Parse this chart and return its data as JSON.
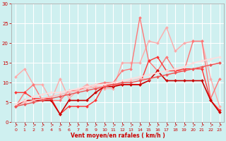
{
  "title": "",
  "xlabel": "Vent moyen/en rafales ( km/h )",
  "ylabel": "",
  "xlim": [
    -0.5,
    23.5
  ],
  "ylim": [
    0,
    30
  ],
  "xticks": [
    0,
    1,
    2,
    3,
    4,
    5,
    6,
    7,
    8,
    9,
    10,
    11,
    12,
    13,
    14,
    15,
    16,
    17,
    18,
    19,
    20,
    21,
    22,
    23
  ],
  "yticks": [
    0,
    5,
    10,
    15,
    20,
    25,
    30
  ],
  "background_color": "#cff0f0",
  "grid_color": "#ffffff",
  "series": [
    {
      "x": [
        0,
        1,
        2,
        3,
        4,
        5,
        6,
        7,
        8,
        9,
        10,
        11,
        12,
        13,
        14,
        15,
        16,
        17,
        18,
        19,
        20,
        21,
        22,
        23
      ],
      "y": [
        11.5,
        13.5,
        9.5,
        9.5,
        5.5,
        11.0,
        6.0,
        8.0,
        9.5,
        8.5,
        8.5,
        8.5,
        15.0,
        15.0,
        15.0,
        20.5,
        20.0,
        24.0,
        18.0,
        20.0,
        20.5,
        20.5,
        11.0,
        4.0
      ],
      "color": "#ffaaaa",
      "lw": 1.0,
      "marker": "D",
      "ms": 2.0
    },
    {
      "x": [
        0,
        1,
        2,
        3,
        4,
        5,
        6,
        7,
        8,
        9,
        10,
        11,
        12,
        13,
        14,
        15,
        16,
        17,
        18,
        19,
        20,
        21,
        22,
        23
      ],
      "y": [
        4.0,
        7.5,
        9.5,
        5.5,
        5.5,
        5.5,
        8.0,
        8.0,
        9.0,
        9.5,
        10.0,
        10.0,
        13.0,
        13.5,
        26.5,
        15.5,
        13.0,
        16.5,
        13.0,
        13.0,
        20.5,
        20.5,
        6.0,
        11.0
      ],
      "color": "#ff7777",
      "lw": 1.0,
      "marker": "D",
      "ms": 2.0
    },
    {
      "x": [
        0,
        1,
        2,
        3,
        4,
        5,
        6,
        7,
        8,
        9,
        10,
        11,
        12,
        13,
        14,
        15,
        16,
        17,
        18,
        19,
        20,
        21,
        22,
        23
      ],
      "y": [
        7.5,
        7.5,
        6.0,
        6.0,
        6.0,
        2.0,
        4.0,
        4.0,
        4.0,
        5.5,
        9.5,
        9.5,
        9.5,
        9.5,
        9.5,
        15.5,
        16.5,
        13.0,
        13.0,
        13.5,
        13.5,
        13.5,
        5.5,
        3.0
      ],
      "color": "#ff3333",
      "lw": 1.0,
      "marker": "D",
      "ms": 2.0
    },
    {
      "x": [
        0,
        1,
        2,
        3,
        4,
        5,
        6,
        7,
        8,
        9,
        10,
        11,
        12,
        13,
        14,
        15,
        16,
        17,
        18,
        19,
        20,
        21,
        22,
        23
      ],
      "y": [
        4.0,
        5.5,
        5.5,
        5.5,
        5.5,
        2.0,
        5.5,
        5.5,
        5.5,
        7.5,
        9.0,
        9.0,
        9.5,
        9.5,
        9.5,
        10.5,
        13.0,
        10.5,
        10.5,
        10.5,
        10.5,
        10.5,
        5.5,
        2.5
      ],
      "color": "#cc0000",
      "lw": 1.2,
      "marker": "D",
      "ms": 2.0
    },
    {
      "x": [
        0,
        1,
        2,
        3,
        4,
        5,
        6,
        7,
        8,
        9,
        10,
        11,
        12,
        13,
        14,
        15,
        16,
        17,
        18,
        19,
        20,
        21,
        22,
        23
      ],
      "y": [
        4.5,
        5.5,
        6.5,
        7.0,
        7.5,
        7.5,
        8.0,
        8.5,
        9.0,
        9.5,
        9.5,
        10.0,
        10.5,
        11.0,
        11.5,
        12.0,
        12.5,
        13.0,
        13.5,
        14.0,
        15.0,
        15.5,
        16.0,
        16.5
      ],
      "color": "#ffdddd",
      "lw": 1.2,
      "marker": "D",
      "ms": 2.0
    },
    {
      "x": [
        0,
        1,
        2,
        3,
        4,
        5,
        6,
        7,
        8,
        9,
        10,
        11,
        12,
        13,
        14,
        15,
        16,
        17,
        18,
        19,
        20,
        21,
        22,
        23
      ],
      "y": [
        4.0,
        5.0,
        5.5,
        6.0,
        6.5,
        7.0,
        7.5,
        8.0,
        8.5,
        9.0,
        9.0,
        9.5,
        10.0,
        10.5,
        11.0,
        11.0,
        11.5,
        12.0,
        12.5,
        13.0,
        13.5,
        14.0,
        14.5,
        15.0
      ],
      "color": "#ffbbbb",
      "lw": 1.0,
      "marker": "D",
      "ms": 2.0
    },
    {
      "x": [
        0,
        1,
        2,
        3,
        4,
        5,
        6,
        7,
        8,
        9,
        10,
        11,
        12,
        13,
        14,
        15,
        16,
        17,
        18,
        19,
        20,
        21,
        22,
        23
      ],
      "y": [
        4.0,
        4.5,
        5.0,
        5.5,
        6.0,
        6.5,
        7.0,
        7.5,
        8.0,
        8.5,
        9.0,
        9.5,
        10.0,
        10.0,
        10.5,
        11.0,
        11.5,
        12.0,
        12.5,
        13.0,
        13.5,
        14.0,
        14.5,
        15.0
      ],
      "color": "#ee5555",
      "lw": 1.0,
      "marker": "D",
      "ms": 2.0
    }
  ],
  "xlabel_color": "#cc0000",
  "tick_color": "#cc0000",
  "axis_color": "#aaaaaa"
}
